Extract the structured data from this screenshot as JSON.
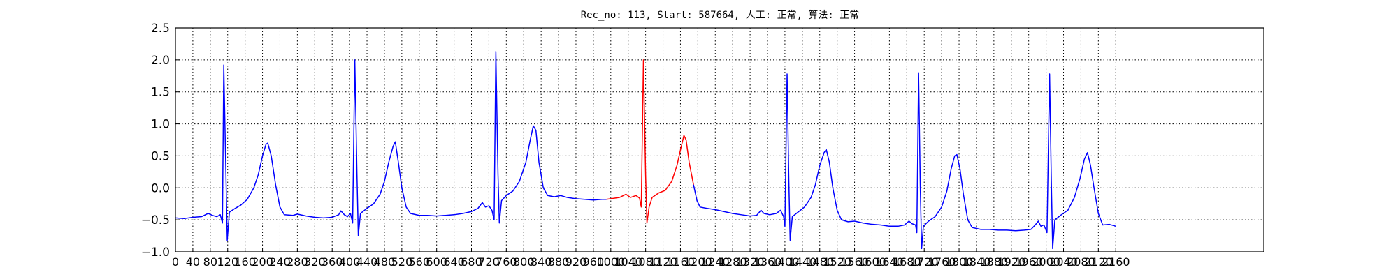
{
  "chart_data": {
    "type": "line",
    "title": "Rec_no: 113, Start: 587664, 人工: 正常, 算法: 正常",
    "xlim": [
      0,
      2500
    ],
    "ylim": [
      -1.0,
      2.5
    ],
    "xticks": [
      0,
      40,
      80,
      120,
      160,
      200,
      240,
      280,
      320,
      360,
      400,
      440,
      480,
      520,
      560,
      600,
      640,
      680,
      720,
      760,
      800,
      840,
      880,
      920,
      960,
      1000,
      1040,
      1080,
      1120,
      1160,
      1200,
      1240,
      1280,
      1320,
      1360,
      1400,
      1440,
      1480,
      1520,
      1560,
      1600,
      1640,
      1680,
      1720,
      1760,
      1800,
      1840,
      1880,
      1920,
      1960,
      2000,
      2040,
      2080,
      2120,
      2160
    ],
    "yticks": [
      {
        "value": -1.0,
        "label": "−1.0"
      },
      {
        "value": -0.5,
        "label": "−0.5"
      },
      {
        "value": 0,
        "label": "0.0"
      },
      0.5,
      {
        "value": 1.0,
        "label": "1.0"
      },
      1.5,
      {
        "value": 2.0,
        "label": "2.0"
      },
      2.5
    ],
    "grid": true,
    "series": [
      {
        "color": "#0000ff",
        "x": [
          0,
          20,
          40,
          60,
          75,
          85,
          95,
          103,
          108,
          111,
          116,
          119,
          124,
          135,
          150,
          165,
          180,
          190,
          200,
          208,
          212,
          220,
          230,
          240,
          250,
          270,
          280,
          300,
          320,
          340,
          360,
          375,
          380,
          388,
          395,
          402,
          407,
          412,
          417,
          420,
          425,
          440,
          455,
          470,
          480,
          490,
          500,
          505,
          512,
          520,
          530,
          540,
          560,
          580,
          600,
          620,
          640,
          660,
          680,
          695,
          705,
          712,
          720,
          727,
          732,
          736,
          741,
          744,
          749,
          760,
          775,
          790,
          805,
          815,
          822,
          828,
          835,
          845,
          855,
          870,
          885,
          900,
          920,
          940,
          960,
          980,
          990,
          1090,
          1190,
          1198,
          1205,
          1220,
          1240,
          1260,
          1280,
          1300,
          1320,
          1335,
          1345,
          1352,
          1365,
          1380,
          1390,
          1397,
          1400,
          1405,
          1409,
          1412,
          1417,
          1430,
          1445,
          1460,
          1470,
          1480,
          1490,
          1495,
          1502,
          1510,
          1520,
          1530,
          1545,
          1560,
          1580,
          1600,
          1620,
          1640,
          1660,
          1675,
          1685,
          1692,
          1700,
          1703,
          1707,
          1711,
          1714,
          1718,
          1730,
          1745,
          1760,
          1772,
          1782,
          1790,
          1795,
          1802,
          1810,
          1820,
          1830,
          1850,
          1870,
          1890,
          1910,
          1930,
          1950,
          1965,
          1975,
          1982,
          1988,
          1995,
          2002,
          2008,
          2012,
          2015,
          2020,
          2035,
          2050,
          2065,
          2078,
          2088,
          2095,
          2102,
          2110,
          2120,
          2130,
          2145,
          2160
        ],
        "values": [
          -0.47,
          -0.48,
          -0.46,
          -0.45,
          -0.4,
          -0.43,
          -0.45,
          -0.42,
          -0.55,
          1.92,
          0.2,
          -0.82,
          -0.38,
          -0.33,
          -0.27,
          -0.18,
          0.0,
          0.2,
          0.5,
          0.68,
          0.7,
          0.5,
          0.05,
          -0.3,
          -0.42,
          -0.43,
          -0.41,
          -0.44,
          -0.46,
          -0.47,
          -0.46,
          -0.42,
          -0.36,
          -0.42,
          -0.45,
          -0.4,
          -0.55,
          2.0,
          0.2,
          -0.75,
          -0.4,
          -0.32,
          -0.25,
          -0.1,
          0.1,
          0.4,
          0.65,
          0.72,
          0.4,
          0.0,
          -0.3,
          -0.4,
          -0.43,
          -0.43,
          -0.44,
          -0.43,
          -0.42,
          -0.4,
          -0.37,
          -0.32,
          -0.23,
          -0.3,
          -0.28,
          -0.35,
          -0.5,
          2.13,
          0.2,
          -0.55,
          -0.2,
          -0.12,
          -0.05,
          0.1,
          0.4,
          0.75,
          0.97,
          0.9,
          0.4,
          0.0,
          -0.12,
          -0.14,
          -0.12,
          -0.15,
          -0.17,
          -0.18,
          -0.19,
          -0.18,
          -0.18,
          null,
          0.05,
          -0.2,
          -0.3,
          -0.32,
          -0.34,
          -0.37,
          -0.4,
          -0.42,
          -0.44,
          -0.43,
          -0.35,
          -0.4,
          -0.42,
          -0.4,
          -0.35,
          -0.45,
          -0.6,
          1.78,
          0.1,
          -0.82,
          -0.45,
          -0.38,
          -0.3,
          -0.15,
          0.05,
          0.35,
          0.55,
          0.6,
          0.4,
          0.0,
          -0.35,
          -0.5,
          -0.53,
          -0.52,
          -0.55,
          -0.57,
          -0.58,
          -0.6,
          -0.6,
          -0.58,
          -0.52,
          -0.56,
          -0.58,
          -0.7,
          1.8,
          0.0,
          -0.95,
          -0.6,
          -0.52,
          -0.45,
          -0.3,
          -0.05,
          0.3,
          0.5,
          0.52,
          0.3,
          -0.1,
          -0.5,
          -0.62,
          -0.65,
          -0.65,
          -0.66,
          -0.66,
          -0.67,
          -0.66,
          -0.65,
          -0.58,
          -0.52,
          -0.6,
          -0.58,
          -0.7,
          1.78,
          0.1,
          -0.95,
          -0.5,
          -0.42,
          -0.35,
          -0.15,
          0.15,
          0.45,
          0.55,
          0.35,
          0.0,
          -0.4,
          -0.58,
          -0.57,
          -0.6
        ]
      },
      {
        "color": "#ff0000",
        "x": [
          990,
          1000,
          1020,
          1035,
          1045,
          1058,
          1066,
          1070,
          1075,
          1080,
          1083,
          1088,
          1095,
          1110,
          1125,
          1140,
          1152,
          1162,
          1168,
          1173,
          1180,
          1190
        ],
        "values": [
          -0.18,
          -0.17,
          -0.15,
          -0.1,
          -0.15,
          -0.12,
          -0.16,
          -0.3,
          2.0,
          0.2,
          -0.55,
          -0.3,
          -0.15,
          -0.08,
          -0.04,
          0.1,
          0.35,
          0.65,
          0.82,
          0.75,
          0.4,
          0.05
        ]
      }
    ]
  }
}
